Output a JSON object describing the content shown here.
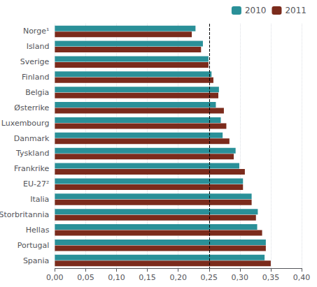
{
  "chart_data": {
    "type": "bar",
    "orientation": "horizontal",
    "categories": [
      "Norge¹",
      "Island",
      "Sverige",
      "Finland",
      "Belgia",
      "Østerrike",
      "Luxembourg",
      "Danmark",
      "Tyskland",
      "Frankrike",
      "EU-27²",
      "Italia",
      "Storbritannia",
      "Hellas",
      "Portugal",
      "Spania"
    ],
    "series": [
      {
        "name": "2010",
        "color": "#2a9098",
        "values": [
          0.228,
          0.24,
          0.249,
          0.254,
          0.266,
          0.261,
          0.269,
          0.272,
          0.293,
          0.299,
          0.305,
          0.319,
          0.329,
          0.328,
          0.342,
          0.34
        ]
      },
      {
        "name": "2011",
        "color": "#7b2b1c",
        "values": [
          0.222,
          0.237,
          0.249,
          0.257,
          0.265,
          0.274,
          0.278,
          0.283,
          0.29,
          0.308,
          0.305,
          0.319,
          0.326,
          0.336,
          0.342,
          0.35
        ]
      }
    ],
    "xlim": [
      0,
      0.4
    ],
    "xticks": [
      {
        "value": 0.0,
        "label": "0,00"
      },
      {
        "value": 0.05,
        "label": "0,05"
      },
      {
        "value": 0.1,
        "label": "0,10"
      },
      {
        "value": 0.15,
        "label": "0,15"
      },
      {
        "value": 0.2,
        "label": "0,20"
      },
      {
        "value": 0.25,
        "label": "0,25"
      },
      {
        "value": 0.3,
        "label": "0,30"
      },
      {
        "value": 0.35,
        "label": "0,35"
      },
      {
        "value": 0.4,
        "label": "0,40"
      }
    ],
    "reference_lines": [
      {
        "x": 0.25,
        "color": "#000000",
        "line_style": "dashed"
      }
    ],
    "grid": true,
    "legend": "upper right"
  }
}
